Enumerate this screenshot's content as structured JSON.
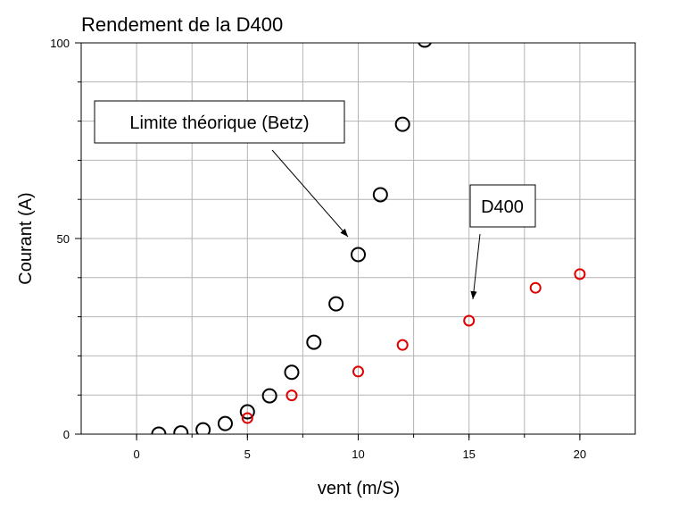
{
  "chart_data": {
    "type": "scatter",
    "title": "Rendement de la D400",
    "xlabel": "vent (m/S)",
    "ylabel": "Courant (A)",
    "xlim": [
      -2.5,
      22.5
    ],
    "ylim": [
      0,
      100
    ],
    "xticks": [
      0,
      5,
      10,
      15,
      20
    ],
    "yticks": [
      0,
      50,
      100
    ],
    "xgrid": [
      0,
      2.5,
      5,
      7.5,
      10,
      12.5,
      15,
      17.5,
      20
    ],
    "ygrid": [
      10,
      20,
      30,
      40,
      50,
      60,
      70,
      80,
      90
    ],
    "grid": true,
    "series": [
      {
        "color": "#000000",
        "x": [
          1,
          2,
          3,
          4,
          5,
          6,
          7,
          8,
          9,
          10,
          11,
          12,
          13
        ],
        "values": [
          0,
          0.3,
          1.1,
          2.7,
          5.7,
          9.8,
          15.8,
          23.5,
          33.3,
          45.9,
          61.2,
          79.2,
          100.7
        ]
      },
      {
        "color": "#e00000",
        "x": [
          5,
          7,
          10,
          12,
          15,
          18,
          20
        ],
        "values": [
          4.1,
          9.9,
          16,
          22.8,
          29,
          37.4,
          40.9
        ]
      }
    ],
    "annotations": [
      "Limite théorique (Betz)",
      "D400"
    ]
  }
}
